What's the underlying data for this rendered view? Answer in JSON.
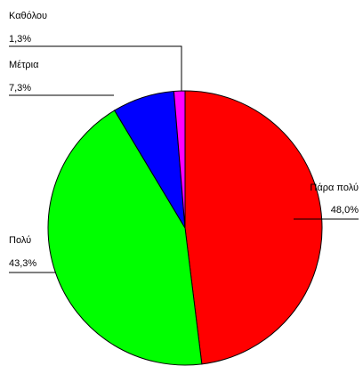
{
  "chart_data": {
    "type": "pie",
    "categories": [
      "Πάρα πολύ",
      "Πολύ",
      "Μέτρια",
      "Καθόλου"
    ],
    "values": [
      48.0,
      43.3,
      7.3,
      1.3
    ],
    "value_labels": [
      "48,0%",
      "43,3%",
      "7,3%",
      "1,3%"
    ],
    "colors": [
      "#ff0000",
      "#00ff00",
      "#0000ff",
      "#ff00ff"
    ]
  }
}
